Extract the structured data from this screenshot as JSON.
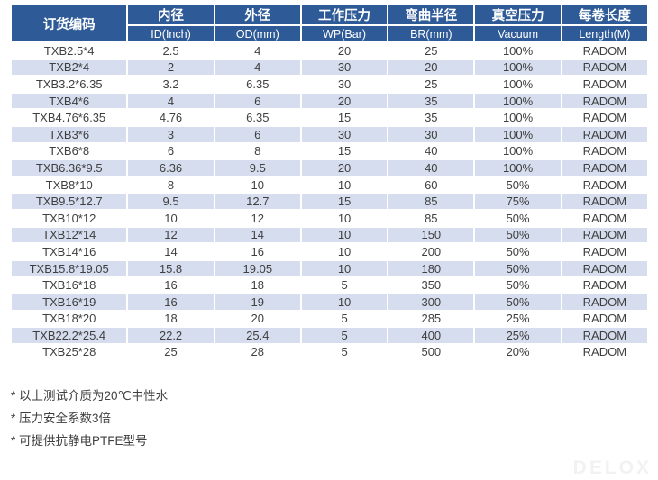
{
  "page": {
    "watermark": "DELOX"
  },
  "table": {
    "header": {
      "order_code": "订货编码",
      "cols": [
        {
          "cn": "内径",
          "en": "ID(Inch)"
        },
        {
          "cn": "外径",
          "en": "OD(mm)"
        },
        {
          "cn": "工作压力",
          "en": "WP(Bar)"
        },
        {
          "cn": "弯曲半径",
          "en": "BR(mm)"
        },
        {
          "cn": "真空压力",
          "en": "Vacuum"
        },
        {
          "cn": "每卷长度",
          "en": "Length(M)"
        }
      ]
    },
    "rows": [
      [
        "TXB2.5*4",
        "2.5",
        "4",
        "20",
        "25",
        "100%",
        "RADOM"
      ],
      [
        "TXB2*4",
        "2",
        "4",
        "30",
        "20",
        "100%",
        "RADOM"
      ],
      [
        "TXB3.2*6.35",
        "3.2",
        "6.35",
        "30",
        "25",
        "100%",
        "RADOM"
      ],
      [
        "TXB4*6",
        "4",
        "6",
        "20",
        "35",
        "100%",
        "RADOM"
      ],
      [
        "TXB4.76*6.35",
        "4.76",
        "6.35",
        "15",
        "35",
        "100%",
        "RADOM"
      ],
      [
        "TXB3*6",
        "3",
        "6",
        "30",
        "30",
        "100%",
        "RADOM"
      ],
      [
        "TXB6*8",
        "6",
        "8",
        "15",
        "40",
        "100%",
        "RADOM"
      ],
      [
        "TXB6.36*9.5",
        "6.36",
        "9.5",
        "20",
        "40",
        "100%",
        "RADOM"
      ],
      [
        "TXB8*10",
        "8",
        "10",
        "10",
        "60",
        "50%",
        "RADOM"
      ],
      [
        "TXB9.5*12.7",
        "9.5",
        "12.7",
        "15",
        "85",
        "75%",
        "RADOM"
      ],
      [
        "TXB10*12",
        "10",
        "12",
        "10",
        "85",
        "50%",
        "RADOM"
      ],
      [
        "TXB12*14",
        "12",
        "14",
        "10",
        "150",
        "50%",
        "RADOM"
      ],
      [
        "TXB14*16",
        "14",
        "16",
        "10",
        "200",
        "50%",
        "RADOM"
      ],
      [
        "TXB15.8*19.05",
        "15.8",
        "19.05",
        "10",
        "180",
        "50%",
        "RADOM"
      ],
      [
        "TXB16*18",
        "16",
        "18",
        "5",
        "350",
        "50%",
        "RADOM"
      ],
      [
        "TXB16*19",
        "16",
        "19",
        "10",
        "300",
        "50%",
        "RADOM"
      ],
      [
        "TXB18*20",
        "18",
        "20",
        "5",
        "285",
        "25%",
        "RADOM"
      ],
      [
        "TXB22.2*25.4",
        "22.2",
        "25.4",
        "5",
        "400",
        "25%",
        "RADOM"
      ],
      [
        "TXB25*28",
        "25",
        "28",
        "5",
        "500",
        "20%",
        "RADOM"
      ]
    ]
  },
  "footnotes": [
    "* 以上测试介质为20℃中性水",
    "* 压力安全系数3倍",
    "* 可提供抗静电PTFE型号"
  ],
  "colors": {
    "header_bg": "#2e5b97",
    "row_alt_bg": "#d5ddee",
    "body_text": "#3f3f3f",
    "header_text": "#ffffff",
    "watermark_text": "#f2f2f2"
  }
}
